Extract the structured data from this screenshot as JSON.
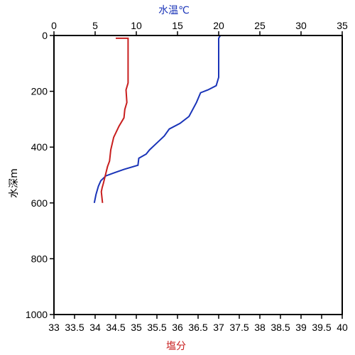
{
  "chart_data": {
    "type": "line",
    "y_axis": {
      "label": "水深m",
      "range": [
        0,
        1000
      ],
      "inverted": true,
      "ticks": [
        "0",
        "200",
        "400",
        "600",
        "800",
        "1000"
      ]
    },
    "top_x_axis": {
      "label": "水温℃",
      "range": [
        0,
        35
      ],
      "color": "#1a34b8",
      "ticks": [
        "0",
        "5",
        "10",
        "15",
        "20",
        "25",
        "30",
        "35"
      ]
    },
    "bottom_x_axis": {
      "label": "塩分",
      "range": [
        33,
        40
      ],
      "color": "#c81e1e",
      "ticks": [
        "33",
        "33.5",
        "34",
        "34.5",
        "35",
        "35.5",
        "36",
        "36.5",
        "37",
        "37.5",
        "38",
        "38.5",
        "39",
        "39.5",
        "40"
      ]
    },
    "grid": false,
    "series": [
      {
        "quantity": "水温",
        "axis": "top",
        "color": "#1a34b8",
        "points": [
          [
            20.2,
            0
          ],
          [
            20.0,
            10
          ],
          [
            20.0,
            100
          ],
          [
            20.0,
            150
          ],
          [
            19.7,
            180
          ],
          [
            18.7,
            195
          ],
          [
            17.8,
            205
          ],
          [
            17.3,
            240
          ],
          [
            16.4,
            290
          ],
          [
            15.3,
            315
          ],
          [
            14.0,
            335
          ],
          [
            13.4,
            360
          ],
          [
            12.5,
            385
          ],
          [
            11.6,
            410
          ],
          [
            11.2,
            425
          ],
          [
            10.3,
            440
          ],
          [
            10.2,
            465
          ],
          [
            8.5,
            480
          ],
          [
            7.3,
            492
          ],
          [
            6.3,
            503
          ],
          [
            5.7,
            520
          ],
          [
            5.4,
            540
          ],
          [
            5.1,
            570
          ],
          [
            4.9,
            600
          ]
        ]
      },
      {
        "quantity": "塩分",
        "axis": "bottom",
        "color": "#c81e1e",
        "points": [
          [
            34.5,
            10
          ],
          [
            34.8,
            10
          ],
          [
            34.8,
            170
          ],
          [
            34.75,
            195
          ],
          [
            34.77,
            240
          ],
          [
            34.72,
            265
          ],
          [
            34.7,
            295
          ],
          [
            34.58,
            325
          ],
          [
            34.45,
            365
          ],
          [
            34.38,
            410
          ],
          [
            34.35,
            450
          ],
          [
            34.3,
            470
          ],
          [
            34.25,
            500
          ],
          [
            34.2,
            530
          ],
          [
            34.17,
            545
          ],
          [
            34.15,
            560
          ],
          [
            34.18,
            600
          ]
        ]
      }
    ]
  }
}
